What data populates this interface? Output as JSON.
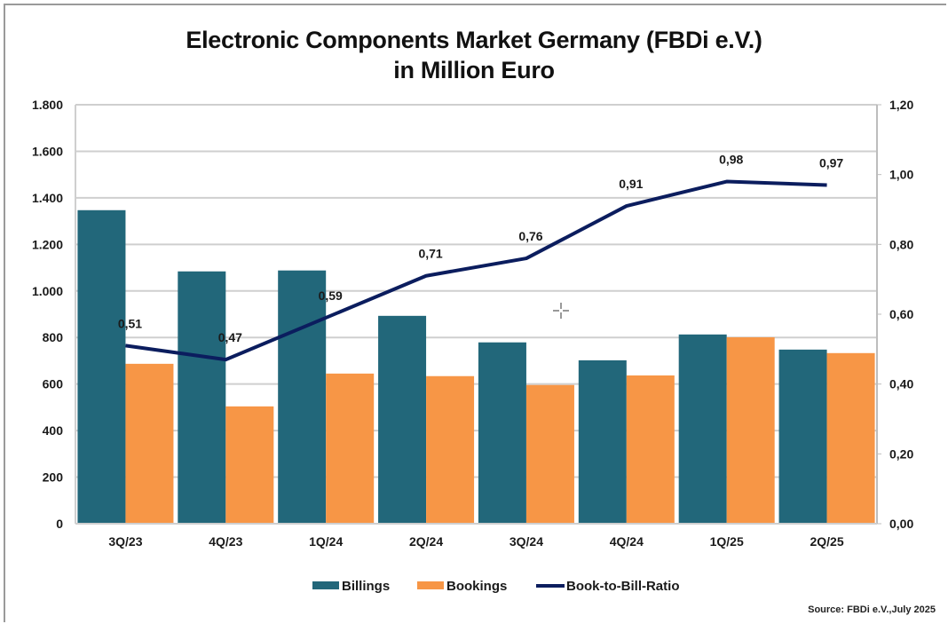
{
  "chart_data": {
    "type": "bar",
    "title": "Electronic Components Market Germany (FBDi e.V.)",
    "subtitle": "in Million Euro",
    "categories": [
      "3Q/23",
      "4Q/23",
      "1Q/24",
      "2Q/24",
      "3Q/24",
      "4Q/24",
      "1Q/25",
      "2Q/25"
    ],
    "series": [
      {
        "name": "Billings",
        "type": "bar",
        "axis": "left",
        "color": "#22677a",
        "values": [
          1347,
          1084,
          1088,
          893,
          779,
          702,
          813,
          748
        ]
      },
      {
        "name": "Bookings",
        "type": "bar",
        "axis": "left",
        "color": "#f79646",
        "values": [
          687,
          504,
          645,
          634,
          596,
          637,
          801,
          733
        ]
      },
      {
        "name": "Book-to-Bill-Ratio",
        "type": "line",
        "axis": "right",
        "color": "#0b1d5e",
        "values": [
          0.51,
          0.47,
          0.59,
          0.71,
          0.76,
          0.91,
          0.98,
          0.97
        ],
        "labels": [
          "0,51",
          "0,47",
          "0,59",
          "0,71",
          "0,76",
          "0,91",
          "0,98",
          "0,97"
        ]
      }
    ],
    "y_left": {
      "ylim": [
        0,
        1800
      ],
      "ticks": [
        0,
        200,
        400,
        600,
        800,
        1000,
        1200,
        1400,
        1600,
        1800
      ],
      "tick_labels": [
        "0",
        "200",
        "400",
        "600",
        "800",
        "1.000",
        "1.200",
        "1.400",
        "1.600",
        "1.800"
      ]
    },
    "y_right": {
      "ylim": [
        0,
        1.2
      ],
      "ticks": [
        0,
        0.2,
        0.4,
        0.6,
        0.8,
        1.0,
        1.2
      ],
      "tick_labels": [
        "0,00",
        "0,20",
        "0,40",
        "0,60",
        "0,80",
        "1,00",
        "1,20"
      ]
    },
    "xlabel": "",
    "ylabel": "",
    "grid": true,
    "legend": {
      "position": "bottom",
      "entries": [
        "Billings",
        "Bookings",
        "Book-to-Bill-Ratio"
      ]
    },
    "source": "Source: FBDi e.V.,July 2025"
  }
}
